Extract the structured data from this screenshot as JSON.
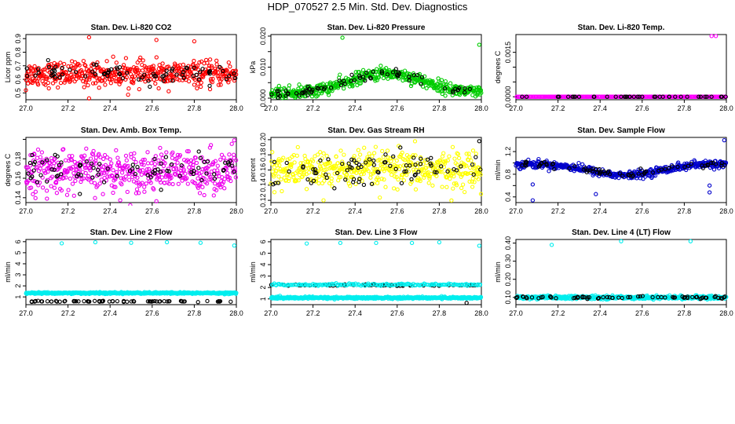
{
  "figure": {
    "title": "HDP_070527  2.5 Min. Std. Dev. Diagnostics"
  },
  "chart_data": [
    {
      "type": "scatter",
      "title": "Stan. Dev. Li-820 CO2",
      "xlabel": "",
      "ylabel": "Licor ppm",
      "xlim": [
        27.0,
        28.0
      ],
      "ylim": [
        0.45,
        0.93
      ],
      "xticks": [
        27.0,
        27.2,
        27.4,
        27.6,
        27.8,
        28.0
      ],
      "xticklabels": [
        "27.0",
        "27.2",
        "27.4",
        "27.6",
        "27.8",
        "28.0"
      ],
      "yticks": [
        0.5,
        0.6,
        0.7,
        0.8,
        0.9
      ],
      "yticklabels": [
        "0.5",
        "0.6",
        "0.7",
        "0.8",
        "0.9"
      ],
      "series": [
        {
          "name": "main",
          "color": "#ff0000",
          "pattern": "flat",
          "base": 0.64,
          "spread": 0.08,
          "count": 480,
          "outliers": [
            [
              27.3,
              0.91
            ],
            [
              27.62,
              0.89
            ],
            [
              27.8,
              0.88
            ],
            [
              27.3,
              0.46
            ],
            [
              27.0,
              0.52
            ]
          ]
        },
        {
          "name": "black",
          "color": "#000000",
          "pattern": "flat",
          "base": 0.64,
          "spread": 0.06,
          "count": 80,
          "outliers": []
        }
      ]
    },
    {
      "type": "scatter",
      "title": "Stan. Dev. Li-820 Pressure",
      "xlabel": "",
      "ylabel": "kPa",
      "xlim": [
        27.0,
        28.0
      ],
      "ylim": [
        -0.0005,
        0.0205
      ],
      "xticks": [
        27.0,
        27.2,
        27.4,
        27.6,
        27.8,
        28.0
      ],
      "xticklabels": [
        "27.0",
        "27.2",
        "27.4",
        "27.6",
        "27.8",
        "28.0"
      ],
      "yticks": [
        0.0,
        0.005,
        0.01,
        0.015,
        0.02
      ],
      "yticklabels": [
        "0.000",
        "",
        "0.010",
        "",
        "0.020"
      ],
      "series": [
        {
          "name": "main",
          "color": "#00cc00",
          "pattern": "hump",
          "base": 0.0015,
          "amp": 0.0065,
          "spread": 0.0018,
          "count": 480,
          "floor": 0.0,
          "outliers": [
            [
              27.34,
              0.0195
            ],
            [
              27.99,
              0.0172
            ]
          ]
        },
        {
          "name": "black",
          "color": "#000000",
          "pattern": "hump",
          "base": 0.0015,
          "amp": 0.0065,
          "spread": 0.0015,
          "count": 70,
          "floor": 0.0,
          "outliers": []
        }
      ]
    },
    {
      "type": "scatter",
      "title": "Stan. Dev. Li-820 Temp.",
      "xlabel": "",
      "ylabel": "degrees C",
      "xlim": [
        27.0,
        28.0
      ],
      "ylim": [
        -0.0001,
        0.0021
      ],
      "xticks": [
        27.0,
        27.2,
        27.4,
        27.6,
        27.8,
        28.0
      ],
      "xticklabels": [
        "27.0",
        "27.2",
        "27.4",
        "27.6",
        "27.8",
        "28.0"
      ],
      "yticks": [
        0.0,
        0.0005,
        0.001,
        0.0015
      ],
      "yticklabels": [
        "0.0000",
        "",
        "",
        "0.0015"
      ],
      "series": [
        {
          "name": "main",
          "color": "#ff00ff",
          "pattern": "flat",
          "base": 0.0,
          "spread": 0.0,
          "count": 260,
          "outliers": [
            [
              27.93,
              0.00205
            ],
            [
              27.95,
              0.00205
            ]
          ]
        },
        {
          "name": "black",
          "color": "#000000",
          "pattern": "flat",
          "base": 0.0,
          "spread": 0.0,
          "count": 40,
          "outliers": []
        }
      ]
    },
    {
      "type": "scatter",
      "title": "Stan. Dev. Amb. Box Temp.",
      "xlabel": "",
      "ylabel": "degrees C",
      "xlim": [
        27.0,
        28.0
      ],
      "ylim": [
        0.135,
        0.202
      ],
      "xticks": [
        27.0,
        27.2,
        27.4,
        27.6,
        27.8,
        28.0
      ],
      "xticklabels": [
        "27.0",
        "27.2",
        "27.4",
        "27.6",
        "27.8",
        "28.0"
      ],
      "yticks": [
        0.14,
        0.16,
        0.18,
        0.2
      ],
      "yticklabels": [
        "0.14",
        "0.16",
        "0.18",
        ""
      ],
      "series": [
        {
          "name": "main",
          "color": "#ee00ee",
          "pattern": "flat",
          "base": 0.167,
          "spread": 0.019,
          "count": 480,
          "outliers": [
            [
              27.99,
              0.199
            ],
            [
              27.1,
              0.139
            ]
          ]
        },
        {
          "name": "black",
          "color": "#000000",
          "pattern": "flat",
          "base": 0.167,
          "spread": 0.017,
          "count": 80,
          "outliers": []
        }
      ]
    },
    {
      "type": "scatter",
      "title": "Stan. Dev. Gas Stream RH",
      "xlabel": "",
      "ylabel": "percent",
      "xlim": [
        27.0,
        28.0
      ],
      "ylim": [
        0.117,
        0.203
      ],
      "xticks": [
        27.0,
        27.2,
        27.4,
        27.6,
        27.8,
        28.0
      ],
      "xticklabels": [
        "27.0",
        "27.2",
        "27.4",
        "27.6",
        "27.8",
        "28.0"
      ],
      "yticks": [
        0.12,
        0.14,
        0.16,
        0.18,
        0.2
      ],
      "yticklabels": [
        "0.12",
        "0.14",
        "0.16",
        "0.18",
        "0.20"
      ],
      "series": [
        {
          "name": "main",
          "color": "#ffff00",
          "pattern": "flat",
          "base": 0.16,
          "spread": 0.022,
          "count": 480,
          "outliers": [
            [
              27.25,
              0.12
            ]
          ]
        },
        {
          "name": "black",
          "color": "#000000",
          "pattern": "flat",
          "base": 0.162,
          "spread": 0.02,
          "count": 80,
          "outliers": [
            [
              27.99,
              0.198
            ]
          ]
        }
      ]
    },
    {
      "type": "scatter",
      "title": "Stan. Dev. Sample Flow",
      "xlabel": "",
      "ylabel": "ml/min",
      "xlim": [
        27.0,
        28.0
      ],
      "ylim": [
        0.3,
        1.45
      ],
      "xticks": [
        27.0,
        27.2,
        27.4,
        27.6,
        27.8,
        28.0
      ],
      "xticklabels": [
        "27.0",
        "27.2",
        "27.4",
        "27.6",
        "27.8",
        "28.0"
      ],
      "yticks": [
        0.4,
        0.6,
        0.8,
        1.0,
        1.2
      ],
      "yticklabels": [
        "0.4",
        "",
        "0.8",
        "",
        "1.2"
      ],
      "series": [
        {
          "name": "main",
          "color": "#0000cc",
          "pattern": "dip",
          "base": 0.98,
          "amp": 0.2,
          "spread": 0.06,
          "count": 480,
          "outliers": [
            [
              27.08,
              0.34
            ],
            [
              27.08,
              0.62
            ],
            [
              27.38,
              0.45
            ],
            [
              27.92,
              0.48
            ],
            [
              27.92,
              0.6
            ],
            [
              27.99,
              1.4
            ],
            [
              27.21,
              0.95
            ]
          ]
        },
        {
          "name": "black",
          "color": "#000000",
          "pattern": "dip",
          "base": 0.98,
          "amp": 0.2,
          "spread": 0.05,
          "count": 70,
          "outliers": []
        }
      ]
    },
    {
      "type": "scatter",
      "title": "Stan. Dev. Line 2 Flow",
      "xlabel": "",
      "ylabel": "ml/min",
      "xlim": [
        27.0,
        28.0
      ],
      "ylim": [
        0.3,
        6.2
      ],
      "xticks": [
        27.0,
        27.2,
        27.4,
        27.6,
        27.8,
        28.0
      ],
      "xticklabels": [
        "27.0",
        "27.2",
        "27.4",
        "27.6",
        "27.8",
        "28.0"
      ],
      "yticks": [
        1,
        2,
        3,
        4,
        5,
        6
      ],
      "yticklabels": [
        "1",
        "2",
        "3",
        "4",
        "5",
        "6"
      ],
      "series": [
        {
          "name": "main",
          "color": "#00eeee",
          "pattern": "flat",
          "base": 1.35,
          "spread": 0.07,
          "count": 480,
          "outliers": [
            [
              27.17,
              5.85
            ],
            [
              27.33,
              5.95
            ],
            [
              27.5,
              5.9
            ],
            [
              27.67,
              5.95
            ],
            [
              27.83,
              5.9
            ],
            [
              27.99,
              5.65
            ]
          ]
        },
        {
          "name": "black",
          "color": "#000000",
          "pattern": "flat",
          "base": 0.6,
          "spread": 0.04,
          "count": 70,
          "outliers": []
        }
      ]
    },
    {
      "type": "scatter",
      "title": "Stan. Dev. Line 3 Flow",
      "xlabel": "",
      "ylabel": "ml/min",
      "xlim": [
        27.0,
        28.0
      ],
      "ylim": [
        0.5,
        6.2
      ],
      "xticks": [
        27.0,
        27.2,
        27.4,
        27.6,
        27.8,
        28.0
      ],
      "xticklabels": [
        "27.0",
        "27.2",
        "27.4",
        "27.6",
        "27.8",
        "28.0"
      ],
      "yticks": [
        1,
        2,
        3,
        4,
        5,
        6
      ],
      "yticklabels": [
        "1",
        "2",
        "3",
        "4",
        "5",
        "6"
      ],
      "series": [
        {
          "name": "main",
          "color": "#00eeee",
          "pattern": "flat",
          "base": 1.1,
          "spread": 0.08,
          "count": 480,
          "outliers": [
            [
              27.17,
              5.85
            ],
            [
              27.33,
              5.9
            ],
            [
              27.5,
              5.9
            ],
            [
              27.67,
              5.9
            ],
            [
              27.8,
              5.95
            ],
            [
              27.99,
              5.65
            ]
          ]
        },
        {
          "name": "black",
          "color": "#000000",
          "pattern": "flat",
          "base": 2.2,
          "spread": 0.08,
          "count": 70,
          "outliers": [
            [
              27.93,
              0.65
            ]
          ]
        },
        {
          "name": "upper",
          "color": "#00eeee",
          "pattern": "flat",
          "base": 2.25,
          "spread": 0.08,
          "count": 160,
          "outliers": []
        }
      ]
    },
    {
      "type": "scatter",
      "title": "Stan. Dev. Line 4 (LT) Flow",
      "xlabel": "",
      "ylabel": "ml/min",
      "xlim": [
        27.0,
        28.0
      ],
      "ylim": [
        0.06,
        0.42
      ],
      "xticks": [
        27.0,
        27.2,
        27.4,
        27.6,
        27.8,
        28.0
      ],
      "xticklabels": [
        "27.0",
        "27.2",
        "27.4",
        "27.6",
        "27.8",
        "28.0"
      ],
      "yticks": [
        0.1,
        0.2,
        0.3,
        0.4
      ],
      "yticklabels": [
        "0.10",
        "0.20",
        "0.30",
        "0.40"
      ],
      "series": [
        {
          "name": "main",
          "color": "#00eeee",
          "pattern": "flat",
          "base": 0.1,
          "spread": 0.008,
          "count": 480,
          "outliers": [
            [
              27.17,
              0.39
            ],
            [
              27.5,
              0.41
            ],
            [
              27.83,
              0.41
            ]
          ]
        },
        {
          "name": "black",
          "color": "#000000",
          "pattern": "flat",
          "base": 0.1,
          "spread": 0.007,
          "count": 70,
          "outliers": []
        }
      ]
    }
  ]
}
